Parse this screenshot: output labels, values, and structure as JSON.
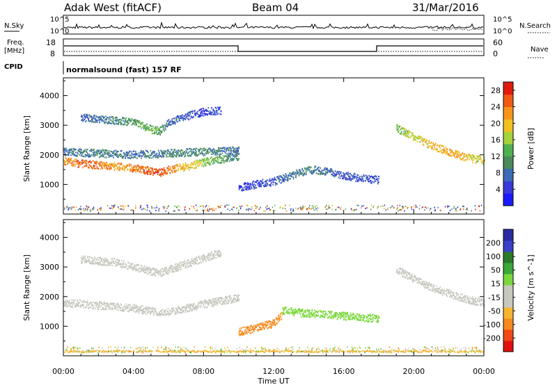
{
  "header": {
    "station": "Adak West (fitACF)",
    "beam": "Beam 04",
    "date": "31/Mar/2016"
  },
  "small_panels": {
    "nsky_label": "N.Sky",
    "nsearch_label": "N.Search",
    "freq_label": "Freq.",
    "freq_unit": "[MHz]",
    "nave_label": "Nave",
    "cpid_label": "CPID",
    "cpid_text": "normalsound (fast) 157 RF",
    "noise_ticks_left": [
      "10^5",
      "10^0"
    ],
    "noise_ticks_right": [
      "10^5",
      "10^0"
    ],
    "freq_ticks": [
      "18",
      "8"
    ],
    "nave_ticks": [
      "60",
      "0"
    ]
  },
  "colors": {
    "power": [
      "#1a1aff",
      "#3a3ad8",
      "#3b6cb6",
      "#4a8a5c",
      "#4fb04f",
      "#a6d23c",
      "#f0c020",
      "#f5961a",
      "#f05a14",
      "#e01b0e"
    ],
    "velocity": [
      "#e01010",
      "#f04818",
      "#f58a20",
      "#f5b530",
      "#c8c8c0",
      "#c8c8c0",
      "#7ad83c",
      "#3aa83a",
      "#2a7a2a",
      "#3a40c8",
      "#2a2aa0"
    ]
  },
  "chart_data": [
    {
      "type": "heatmap",
      "title": "",
      "xlabel": "Time UT",
      "ylabel": "Slant Range [km]",
      "xlim": [
        "00:00",
        "24:00"
      ],
      "ylim": [
        0,
        4600
      ],
      "x_ticks": [
        "00:00",
        "04:00",
        "08:00",
        "12:00",
        "16:00",
        "20:00",
        "00:00"
      ],
      "y_ticks": [
        1000,
        2000,
        3000,
        4000
      ],
      "colorbar": {
        "label": "Power [dB]",
        "ticks": [
          4,
          8,
          12,
          16,
          20,
          24,
          28
        ],
        "range": [
          0,
          30
        ]
      },
      "series": [
        {
          "x": [
            0.0,
            0.5,
            1.0,
            2.0,
            3.0,
            4.0,
            5.0,
            5.5,
            6.0,
            7.0,
            8.0,
            9.0,
            10.0
          ],
          "y": [
            1800,
            1750,
            1700,
            1650,
            1600,
            1550,
            1450,
            1400,
            1500,
            1600,
            1750,
            1850,
            1950
          ],
          "values": [
            22,
            24,
            26,
            24,
            22,
            23,
            26,
            27,
            24,
            20,
            16,
            12,
            10
          ]
        },
        {
          "x": [
            0.0,
            2.0,
            4.0,
            6.0,
            8.0,
            10.0
          ],
          "y": [
            2100,
            2050,
            2000,
            2050,
            2100,
            2150
          ],
          "values": [
            8,
            10,
            8,
            9,
            10,
            8
          ]
        },
        {
          "x": [
            1.0,
            2.0,
            3.0,
            4.0,
            5.0,
            5.5,
            6.0,
            7.0,
            8.0,
            9.0
          ],
          "y": [
            3250,
            3200,
            3150,
            3100,
            2850,
            2800,
            3100,
            3300,
            3450,
            3500
          ],
          "values": [
            6,
            8,
            10,
            12,
            14,
            12,
            8,
            6,
            5,
            5
          ]
        },
        {
          "x": [
            10.0,
            11.0,
            12.0,
            13.0,
            14.0,
            15.0,
            16.0,
            17.0,
            18.0
          ],
          "y": [
            900,
            1000,
            1100,
            1300,
            1500,
            1450,
            1300,
            1200,
            1150
          ],
          "values": [
            4,
            5,
            6,
            8,
            10,
            8,
            6,
            6,
            5
          ]
        },
        {
          "x": [
            19.0,
            20.0,
            21.0,
            22.0,
            23.0,
            24.0
          ],
          "y": [
            2900,
            2600,
            2300,
            2100,
            1900,
            1800
          ],
          "values": [
            14,
            18,
            20,
            22,
            20,
            16
          ]
        }
      ]
    },
    {
      "type": "heatmap",
      "title": "",
      "xlabel": "Time UT",
      "ylabel": "Slant Range [km]",
      "xlim": [
        "00:00",
        "24:00"
      ],
      "ylim": [
        0,
        4600
      ],
      "x_ticks": [
        "00:00",
        "04:00",
        "08:00",
        "12:00",
        "16:00",
        "20:00",
        "00:00"
      ],
      "y_ticks": [
        1000,
        2000,
        3000,
        4000
      ],
      "colorbar": {
        "label": "Velocity [m s^-1]",
        "ticks": [
          200,
          100,
          50,
          15,
          -15,
          -50,
          -100,
          -200
        ]
      },
      "series": [
        {
          "x": [
            0.0,
            2.0,
            4.0,
            5.5,
            7.0,
            8.0,
            10.0
          ],
          "y": [
            1800,
            1700,
            1600,
            1450,
            1600,
            1750,
            1950
          ],
          "values": [
            0,
            0,
            0,
            0,
            0,
            0,
            0
          ]
        },
        {
          "x": [
            1.0,
            3.0,
            5.0,
            5.5,
            7.0,
            9.0
          ],
          "y": [
            3250,
            3150,
            2850,
            2800,
            3100,
            3500
          ],
          "values": [
            0,
            0,
            0,
            0,
            0,
            0
          ]
        },
        {
          "x": [
            10.0,
            11.0,
            12.0,
            12.5
          ],
          "y": [
            800,
            950,
            1100,
            1400
          ],
          "values": [
            -80,
            -90,
            -70,
            -40
          ]
        },
        {
          "x": [
            12.5,
            13.5,
            15.0,
            16.0,
            17.0,
            18.0
          ],
          "y": [
            1550,
            1450,
            1400,
            1350,
            1300,
            1250
          ],
          "values": [
            30,
            40,
            40,
            35,
            30,
            30
          ]
        },
        {
          "x": [
            19.0,
            20.0,
            21.0,
            22.0,
            23.0,
            24.0
          ],
          "y": [
            2900,
            2600,
            2300,
            2100,
            1900,
            1800
          ],
          "values": [
            0,
            0,
            0,
            0,
            0,
            0
          ]
        },
        {
          "x": [
            0.0,
            6.0,
            12.0,
            18.0,
            24.0
          ],
          "y": [
            150,
            150,
            150,
            150,
            150
          ],
          "values": [
            -40,
            -40,
            -40,
            -40,
            -40
          ]
        }
      ]
    }
  ]
}
